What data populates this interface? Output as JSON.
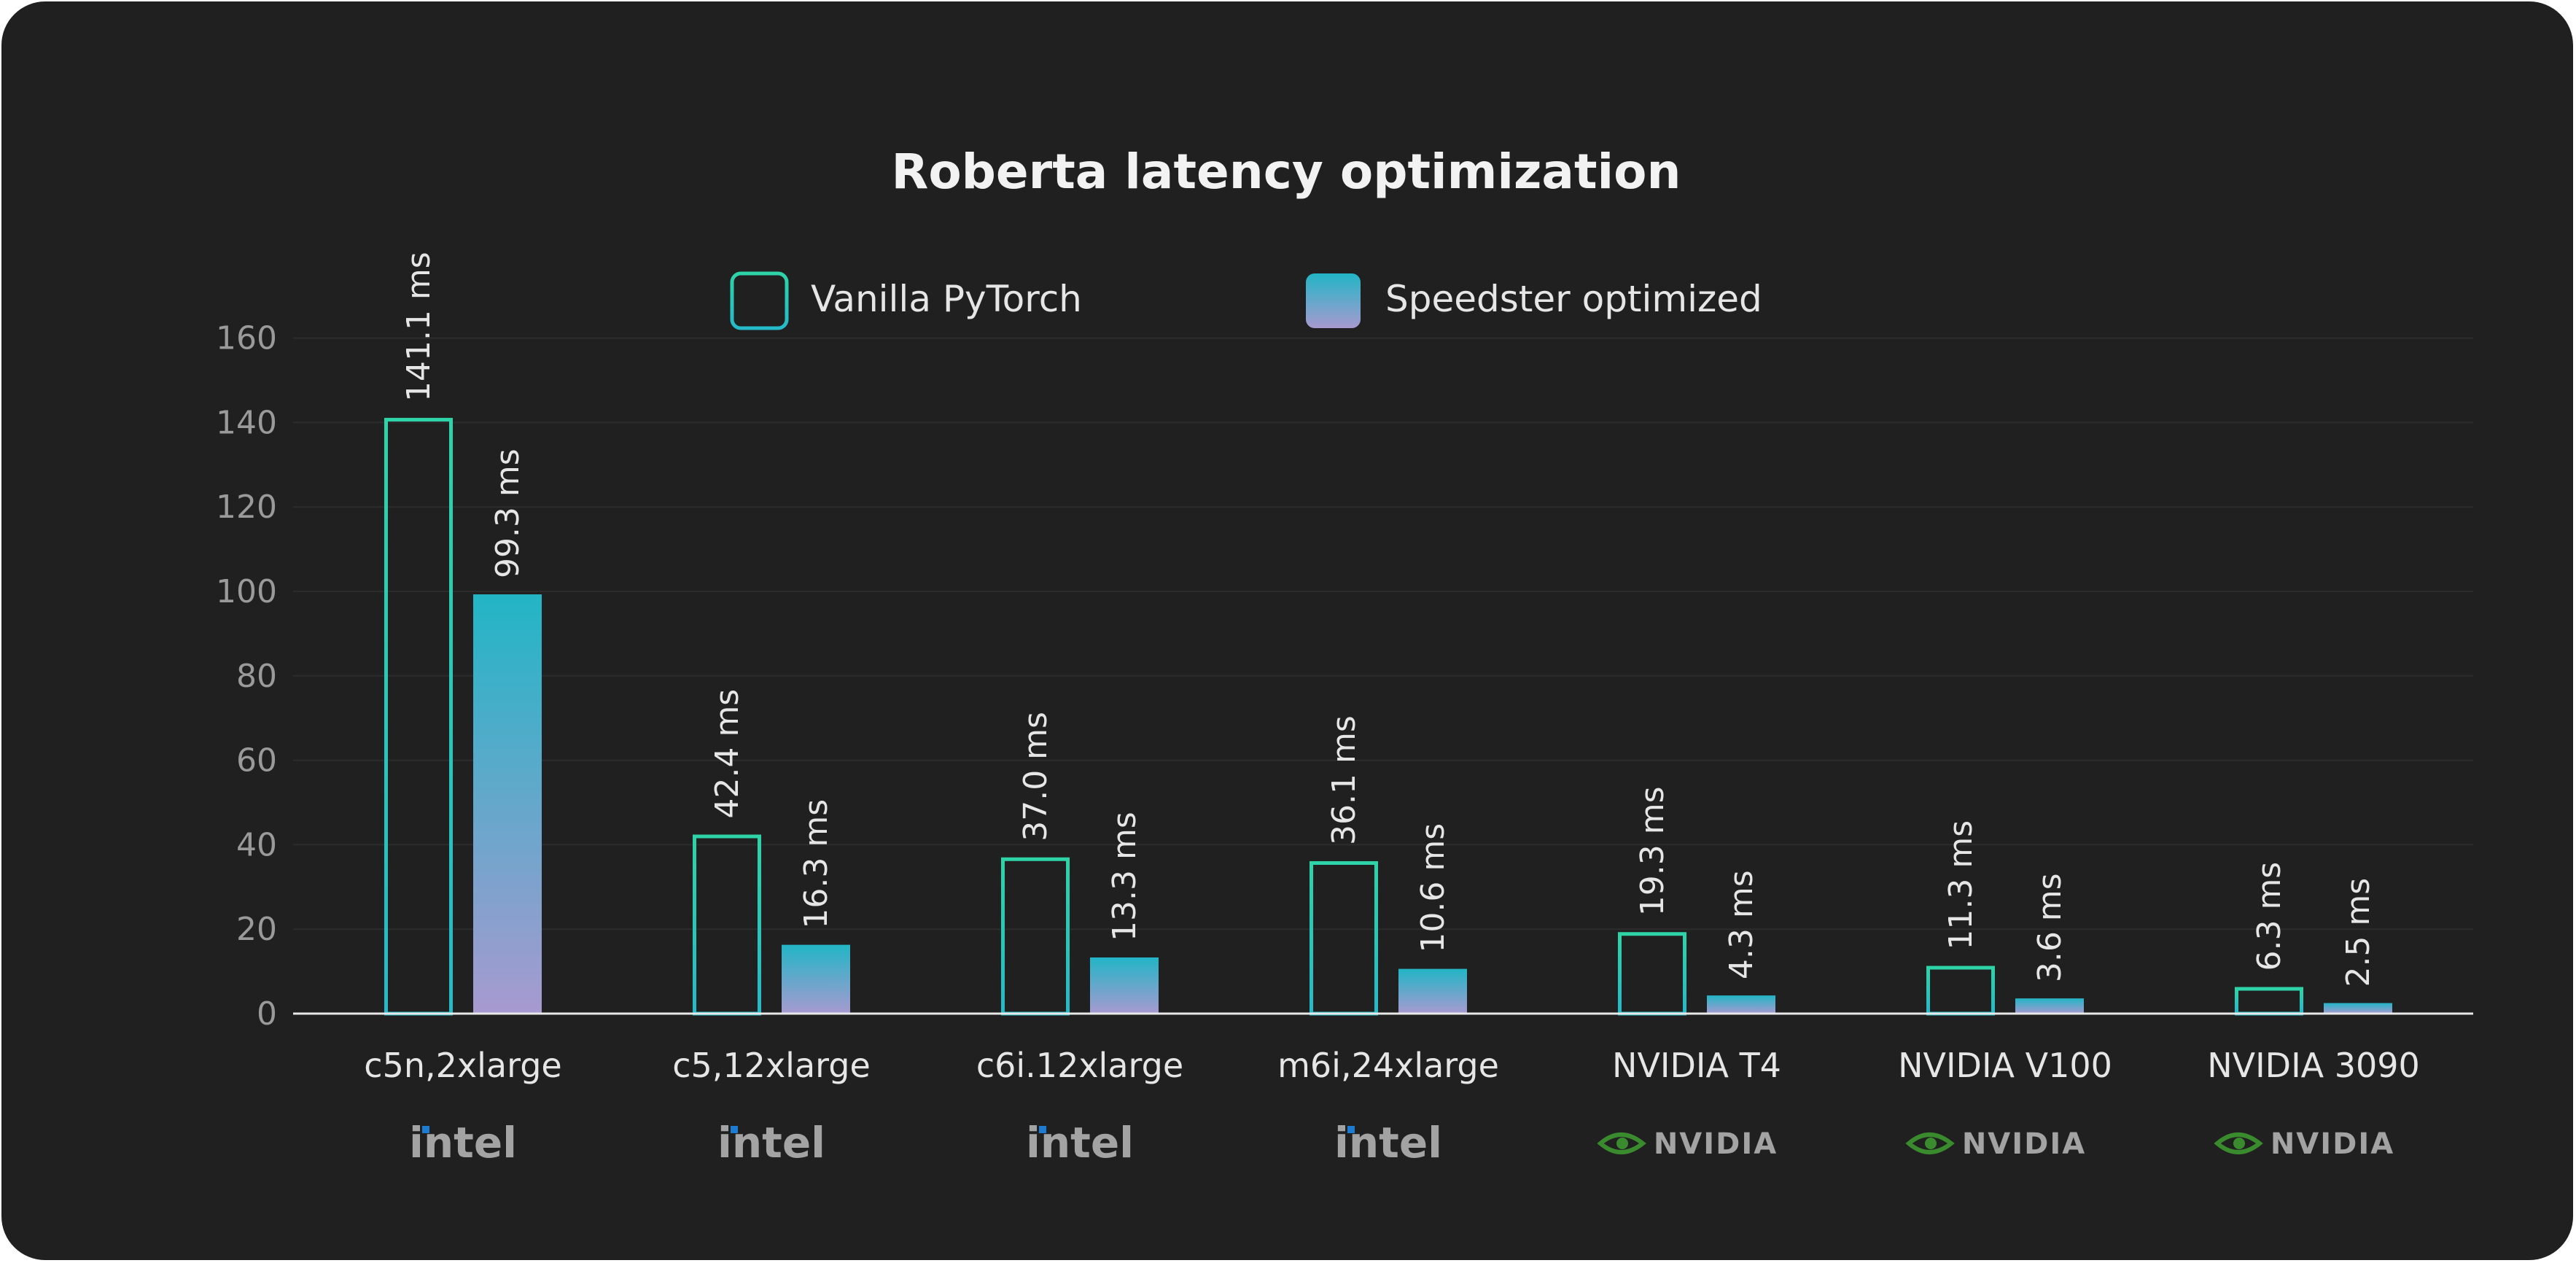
{
  "chart_data": {
    "type": "bar",
    "title": "Roberta latency optimization",
    "categories": [
      "c5n,2xlarge",
      "c5,12xlarge",
      "c6i.12xlarge",
      "m6i,24xlarge",
      "NVIDIA T4",
      "NVIDIA V100",
      "NVIDIA 3090"
    ],
    "vendors": [
      "intel",
      "intel",
      "intel",
      "intel",
      "NVIDIA",
      "NVIDIA",
      "NVIDIA"
    ],
    "series": [
      {
        "name": "Vanilla PyTorch",
        "values": [
          141.1,
          42.4,
          37.0,
          36.1,
          19.3,
          11.3,
          6.3
        ],
        "labels": [
          "141.1 ms",
          "42.4 ms",
          "37.0 ms",
          "36.1 ms",
          "19.3 ms",
          "11.3 ms",
          "6.3 ms"
        ]
      },
      {
        "name": "Speedster optimized",
        "values": [
          99.3,
          16.3,
          13.3,
          10.6,
          4.3,
          3.6,
          2.5
        ],
        "labels": [
          "99.3 ms",
          "16.3 ms",
          "13.3 ms",
          "10.6 ms",
          "4.3 ms",
          "3.6 ms",
          "2.5 ms"
        ]
      }
    ],
    "yticks": [
      0,
      20,
      40,
      60,
      80,
      100,
      120,
      140,
      160
    ],
    "ylim": [
      0,
      160
    ],
    "xlabel": "",
    "ylabel": "",
    "grid": true,
    "legend_position": "top-center",
    "colors": {
      "background": "#202020",
      "vanilla_outline_top": "#2ed3a8",
      "vanilla_outline_bottom": "#25b9c9",
      "speedster_top": "#22b5c6",
      "speedster_bottom": "#a79ad0",
      "gridline": "#2c2c2c",
      "baseline": "#e8e8e8",
      "nvidia_green": "#3a8a2e"
    }
  }
}
